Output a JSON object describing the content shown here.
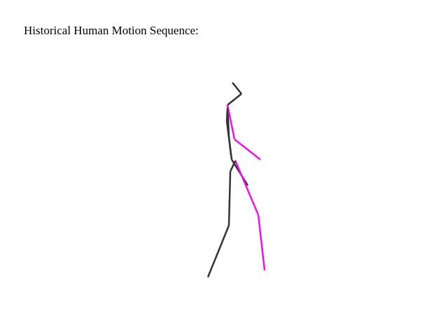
{
  "header": {
    "title": "Historical Human Motion Sequence:"
  },
  "figure": {
    "colors": {
      "left_side": "#333333",
      "right_side": "#ee11ee"
    },
    "limbs": [
      "head",
      "torso",
      "left-arm",
      "right-arm",
      "left-leg",
      "right-leg"
    ]
  }
}
